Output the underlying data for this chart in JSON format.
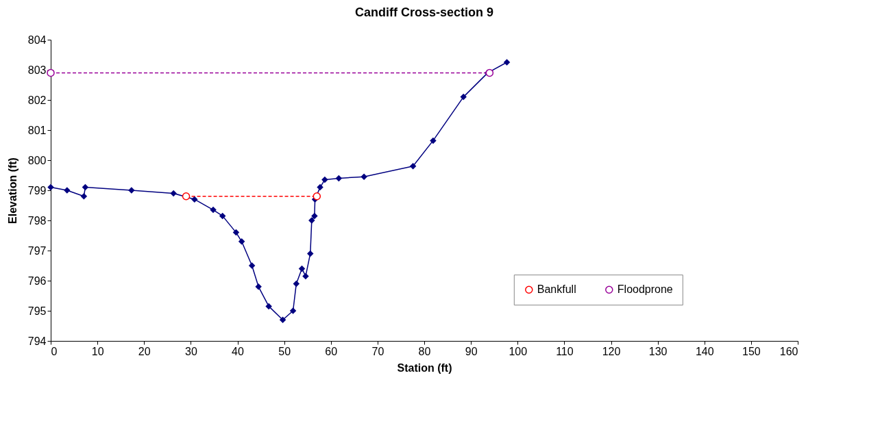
{
  "chart_data": {
    "type": "line",
    "title": "Candiff Cross-section 9",
    "xlabel": "Station (ft)",
    "ylabel": "Elevation (ft)",
    "xlim": [
      0,
      160
    ],
    "xticks": [
      0,
      10,
      20,
      30,
      40,
      50,
      60,
      70,
      80,
      90,
      100,
      110,
      120,
      130,
      140,
      150,
      160
    ],
    "ylim": [
      794,
      804
    ],
    "yticks": [
      794,
      795,
      796,
      797,
      798,
      799,
      800,
      801,
      802,
      803,
      804
    ],
    "grid": false,
    "legend": "bottom right",
    "series": [
      {
        "color": "#000080",
        "marker": "diamond",
        "line_style": "solid",
        "x": [
          0,
          3.5,
          7.1,
          7.4,
          17.3,
          26.3,
          30.8,
          34.8,
          36.8,
          39.7,
          40.9,
          43.1,
          44.5,
          46.7,
          49.7,
          51.9,
          52.6,
          53.8,
          54.6,
          55.6,
          55.9,
          56.5,
          56.6,
          57.7,
          58.7,
          61.7,
          67.1,
          77.6,
          81.9,
          88.4,
          93.6,
          97.7
        ],
        "values": [
          799.1,
          799.0,
          798.8,
          799.1,
          799.0,
          798.9,
          798.7,
          798.35,
          798.15,
          797.6,
          797.3,
          796.5,
          795.8,
          795.15,
          794.7,
          795.0,
          795.9,
          796.4,
          796.15,
          796.9,
          798.0,
          798.15,
          798.7,
          799.1,
          799.35,
          799.4,
          799.45,
          799.8,
          800.65,
          802.1,
          802.9,
          803.25
        ]
      },
      {
        "name": "Bankfull",
        "color": "#ff0000",
        "marker": "circle",
        "line_style": "dashed",
        "x": [
          29,
          57
        ],
        "values": [
          798.8,
          798.8
        ]
      },
      {
        "name": "Floodprone",
        "color": "#990099",
        "marker": "circle",
        "line_style": "dashed",
        "x": [
          0,
          94
        ],
        "values": [
          802.9,
          802.9
        ]
      }
    ]
  }
}
